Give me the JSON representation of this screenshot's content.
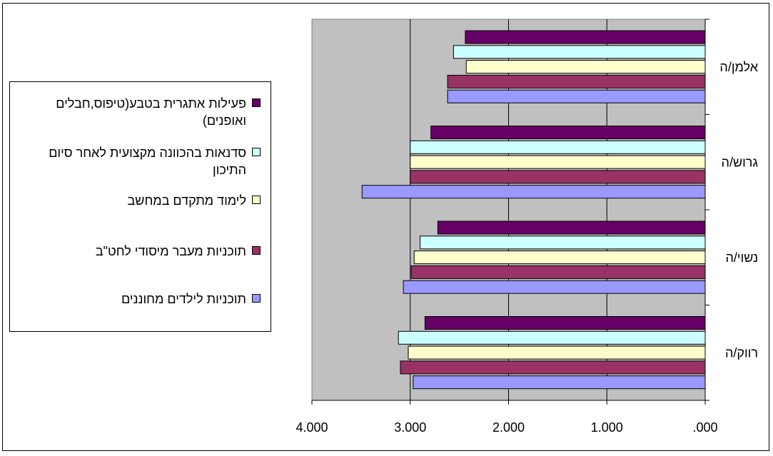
{
  "chart_data": {
    "type": "bar",
    "orientation": "horizontal",
    "x_axis_reversed": true,
    "categories": [
      "אלמן/ה",
      "גרוש/ה",
      "נשוי/ה",
      "רווק/ה"
    ],
    "series": [
      {
        "name": "פעילות אתגרית בטבע(טיפוס,חבלים ואופנים)",
        "color": "#660066",
        "values": [
          2.44,
          2.79,
          2.72,
          2.85
        ]
      },
      {
        "name": "סדנאות בהכוונה מקצועית לאחר סיום התיכון",
        "color": "#ccffff",
        "values": [
          2.56,
          3.0,
          2.9,
          3.12
        ]
      },
      {
        "name": "לימוד מתקדם במחשב",
        "color": "#ffffcc",
        "values": [
          2.43,
          3.0,
          2.96,
          3.02
        ]
      },
      {
        "name": "תוכניות מעבר מיסודי לחט\"ב",
        "color": "#993366",
        "values": [
          2.62,
          3.0,
          2.99,
          3.1
        ]
      },
      {
        "name": "תוכניות לילדים מחוננים",
        "color": "#9999ff",
        "values": [
          2.62,
          3.49,
          3.07,
          2.97
        ]
      }
    ],
    "x_ticks": [
      "4.000",
      "3.000",
      "2.000",
      "1.000",
      ".000"
    ],
    "xlim": [
      0,
      4
    ],
    "grid": true,
    "legend_position": "left"
  }
}
